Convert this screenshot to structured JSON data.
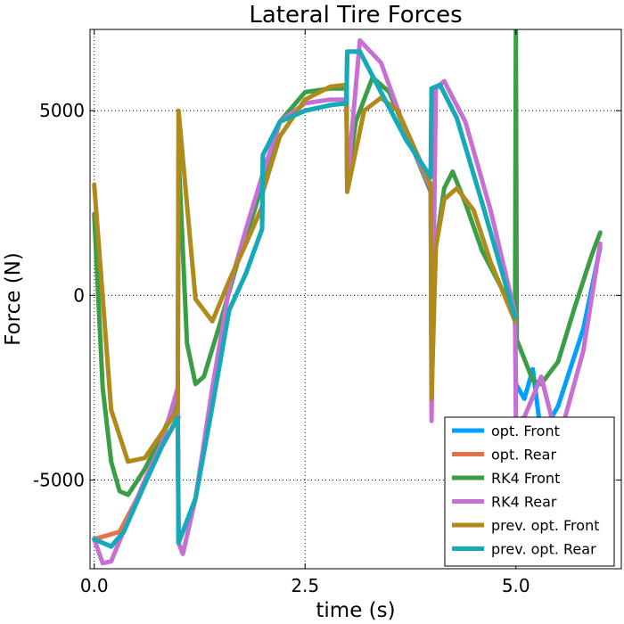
{
  "chart_data": {
    "type": "line",
    "title": "Lateral Tire Forces",
    "xlabel": "time (s)",
    "ylabel": "Force (N)",
    "xlim": [
      -0.05,
      6.25
    ],
    "ylim": [
      -7400,
      7200
    ],
    "xticks": [
      0.0,
      2.5,
      5.0
    ],
    "xtick_labels": [
      "0.0",
      "2.5",
      "5.0"
    ],
    "yticks": [
      -5000,
      0,
      5000
    ],
    "ytick_labels": [
      "-5000",
      "0",
      "5000"
    ],
    "grid": true,
    "legend_position": "lower-right",
    "series": [
      {
        "name": "opt. Front",
        "color": "#00a0ff",
        "x": [
          0,
          0.2,
          0.35,
          0.6,
          0.8,
          0.99,
          1.0,
          1.2,
          1.4,
          1.6,
          1.8,
          1.99,
          2.0,
          2.2,
          2.5,
          2.8,
          2.99,
          3.0,
          3.15,
          3.4,
          3.7,
          3.99,
          4.0,
          4.1,
          4.3,
          4.6,
          4.99,
          5.0,
          5.1,
          5.2,
          5.3,
          5.5,
          5.8,
          6.0
        ],
        "y": [
          -6600,
          -6800,
          -6400,
          -5100,
          -4100,
          -3300,
          -6700,
          -5500,
          -3000,
          -400,
          600,
          1800,
          3800,
          4700,
          5000,
          5150,
          5200,
          6600,
          6600,
          5500,
          4200,
          3200,
          5600,
          5700,
          4800,
          2500,
          -600,
          -2400,
          -2800,
          -2000,
          -3800,
          -3000,
          -900,
          1300
        ]
      },
      {
        "name": "opt. Rear",
        "color": "#e6724a",
        "x": [
          0,
          0.3,
          0.6,
          0.8,
          1.0
        ],
        "y": [
          -6600,
          -6400,
          -5100,
          -4100,
          -3300
        ]
      },
      {
        "name": "RK4 Front",
        "color": "#3a9e47",
        "x": [
          0,
          0.1,
          0.2,
          0.3,
          0.4,
          0.6,
          0.8,
          0.99,
          1.0,
          1.1,
          1.2,
          1.3,
          1.5,
          1.7,
          1.9,
          2.0,
          2.2,
          2.5,
          2.8,
          2.99,
          3.0,
          3.1,
          3.3,
          3.5,
          3.7,
          3.99,
          4.0,
          4.05,
          4.15,
          4.25,
          4.4,
          4.6,
          4.99,
          5.0,
          5.01,
          5.2,
          5.3,
          5.5,
          5.7,
          5.9,
          6.0
        ],
        "y": [
          2200,
          -2500,
          -4500,
          -5300,
          -5400,
          -4700,
          -3800,
          -2800,
          3800,
          -1300,
          -2400,
          -2200,
          -700,
          900,
          2300,
          3100,
          4700,
          5500,
          5600,
          5600,
          3000,
          4700,
          5900,
          5500,
          4400,
          2800,
          -2000,
          1300,
          2900,
          3350,
          2500,
          1200,
          -500,
          7200,
          -1200,
          -2300,
          -2400,
          -1800,
          -300,
          1100,
          1700
        ]
      },
      {
        "name": "RK4 Rear",
        "color": "#c86fd3",
        "x": [
          0,
          0.1,
          0.2,
          0.4,
          0.6,
          0.8,
          0.99,
          1.0,
          1.05,
          1.2,
          1.4,
          1.6,
          1.8,
          2.0,
          2.2,
          2.5,
          2.8,
          2.99,
          3.0,
          3.15,
          3.4,
          3.7,
          3.99,
          4.0,
          4.05,
          4.15,
          4.4,
          4.7,
          4.99,
          5.0,
          5.1,
          5.3,
          5.5,
          5.8,
          6.0
        ],
        "y": [
          -6600,
          -7250,
          -7200,
          -6100,
          -5000,
          -4000,
          -2500,
          -6700,
          -7000,
          -5500,
          -2500,
          200,
          1800,
          3300,
          4700,
          5200,
          5300,
          5300,
          3000,
          6900,
          6300,
          4400,
          2900,
          -3400,
          5600,
          5800,
          4700,
          2300,
          -500,
          -3400,
          -3300,
          -2200,
          -4000,
          -1500,
          1400
        ]
      },
      {
        "name": "prev. opt. Front",
        "color": "#b08a1a",
        "x": [
          0,
          0.2,
          0.4,
          0.6,
          0.99,
          1.0,
          1.2,
          1.4,
          1.6,
          1.8,
          1.99,
          2.0,
          2.2,
          2.5,
          2.8,
          2.99,
          3.0,
          3.2,
          3.4,
          3.6,
          3.99,
          4.0,
          4.05,
          4.15,
          4.3,
          4.5,
          4.7,
          4.99
        ],
        "y": [
          3000,
          -3100,
          -4500,
          -4400,
          -3100,
          5000,
          -100,
          -700,
          400,
          1400,
          2400,
          2800,
          4300,
          5300,
          5650,
          5700,
          2800,
          5000,
          5350,
          5000,
          3000,
          -2800,
          1300,
          2600,
          2900,
          2300,
          900,
          -700
        ]
      },
      {
        "name": "prev. opt. Rear",
        "color": "#16aab8",
        "x": [
          0,
          0.2,
          0.35,
          0.6,
          0.8,
          0.99,
          1.0,
          1.2,
          1.4,
          1.6,
          1.8,
          1.99,
          2.0,
          2.2,
          2.5,
          2.8,
          2.99,
          3.0,
          3.15,
          3.4,
          3.7,
          3.99,
          4.0,
          4.1,
          4.3,
          4.6,
          4.99
        ],
        "y": [
          -6600,
          -6800,
          -6400,
          -5100,
          -4100,
          -3300,
          -6700,
          -5500,
          -3000,
          -400,
          600,
          1800,
          3800,
          4700,
          5000,
          5150,
          5200,
          6600,
          6600,
          5500,
          4200,
          3200,
          5600,
          5700,
          4800,
          2500,
          -600
        ]
      }
    ]
  }
}
